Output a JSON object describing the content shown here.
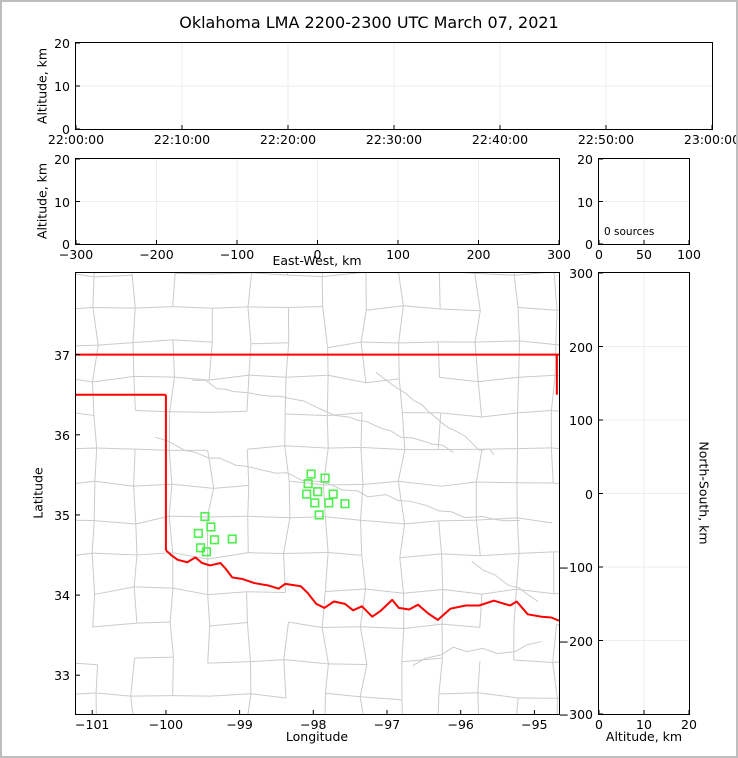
{
  "title": "Oklahoma LMA 2200-2300 UTC March 07, 2021",
  "colors": {
    "background": "#ffffff",
    "frame": "#000000",
    "gridline": "#ededed",
    "county_line": "#cbcbcb",
    "state_boundary": "#ff0000",
    "station_marker": "#4ef04e",
    "outer_border": "#bdbdbd",
    "text": "#000000"
  },
  "chart_data": {
    "type": "scatter",
    "description": "Multi-panel lightning mapping array plot with zero detected sources; green squares on map are station locations",
    "panels": {
      "time_height": {
        "type": "scatter",
        "ylabel": "Altitude, km",
        "ylim": [
          0,
          20
        ],
        "yticks": [
          0,
          10,
          20
        ],
        "ytick_labels": [
          "0",
          "10",
          "20"
        ],
        "xlim": [
          0,
          6
        ],
        "xticks": [
          0,
          1,
          2,
          3,
          4,
          5,
          6
        ],
        "xtick_labels": [
          "22:00:00",
          "22:10:00",
          "22:20:00",
          "22:30:00",
          "22:40:00",
          "22:50:00",
          "23:00:00"
        ],
        "points": []
      },
      "ew_height": {
        "type": "scatter",
        "xlabel": "East-West, km",
        "ylabel": "Altitude, km",
        "xlim": [
          -300,
          300
        ],
        "xticks": [
          -300,
          -200,
          -100,
          0,
          100,
          200,
          300
        ],
        "xtick_labels": [
          "−300",
          "−200",
          "−100",
          "0",
          "100",
          "200",
          "300"
        ],
        "ylim": [
          0,
          20
        ],
        "yticks": [
          0,
          10,
          20
        ],
        "ytick_labels": [
          "0",
          "10",
          "20"
        ],
        "points": []
      },
      "alt_histogram": {
        "type": "line",
        "annotation": "0 sources",
        "xlim": [
          0,
          100
        ],
        "xticks": [
          0,
          50,
          100
        ],
        "xtick_labels": [
          "0",
          "50",
          "100"
        ],
        "ylim": [
          0,
          20
        ],
        "yticks": [
          0,
          10,
          20
        ],
        "ytick_labels": [
          "0",
          "10",
          "20"
        ],
        "points": []
      },
      "plan_map": {
        "type": "scatter",
        "xlabel": "Longitude",
        "ylabel": "Latitude",
        "xlim": [
          -101.22,
          -94.666
        ],
        "xticks": [
          -101,
          -100,
          -99,
          -98,
          -97,
          -96,
          -95
        ],
        "xtick_labels": [
          "−101",
          "−100",
          "−99",
          "−98",
          "−97",
          "−96",
          "−95"
        ],
        "ylim": [
          32.516,
          38.019
        ],
        "yticks": [
          33,
          34,
          35,
          36,
          37
        ],
        "ytick_labels": [
          "33",
          "34",
          "35",
          "36",
          "37"
        ],
        "stations": [
          [
            -99.47,
            34.98
          ],
          [
            -99.39,
            34.85
          ],
          [
            -99.56,
            34.77
          ],
          [
            -99.34,
            34.69
          ],
          [
            -99.1,
            34.7
          ],
          [
            -99.53,
            34.59
          ],
          [
            -99.45,
            34.54
          ],
          [
            -98.03,
            35.51
          ],
          [
            -97.84,
            35.46
          ],
          [
            -98.07,
            35.39
          ],
          [
            -97.94,
            35.29
          ],
          [
            -98.09,
            35.26
          ],
          [
            -97.73,
            35.26
          ],
          [
            -97.98,
            35.15
          ],
          [
            -97.79,
            35.15
          ],
          [
            -97.57,
            35.14
          ],
          [
            -97.92,
            35.0
          ]
        ],
        "state_boundary": {
          "segments": [
            [
              [
                -101.22,
                37.0
              ],
              [
                -94.666,
                37.0
              ]
            ],
            [
              [
                -94.695,
                37.0
              ],
              [
                -94.695,
                36.5
              ]
            ],
            [
              [
                -101.22,
                36.5
              ],
              [
                -100.0,
                36.5
              ]
            ],
            [
              [
                -100.0,
                36.5
              ],
              [
                -100.0,
                34.56
              ]
            ]
          ],
          "red_river": [
            [
              -100.0,
              34.56
            ],
            [
              -99.93,
              34.5
            ],
            [
              -99.84,
              34.44
            ],
            [
              -99.71,
              34.41
            ],
            [
              -99.6,
              34.47
            ],
            [
              -99.51,
              34.4
            ],
            [
              -99.4,
              34.37
            ],
            [
              -99.26,
              34.4
            ],
            [
              -99.19,
              34.33
            ],
            [
              -99.1,
              34.22
            ],
            [
              -98.96,
              34.2
            ],
            [
              -98.8,
              34.15
            ],
            [
              -98.61,
              34.12
            ],
            [
              -98.47,
              34.08
            ],
            [
              -98.38,
              34.14
            ],
            [
              -98.17,
              34.11
            ],
            [
              -98.08,
              34.03
            ],
            [
              -97.96,
              33.89
            ],
            [
              -97.85,
              33.84
            ],
            [
              -97.72,
              33.92
            ],
            [
              -97.57,
              33.89
            ],
            [
              -97.46,
              33.81
            ],
            [
              -97.34,
              33.86
            ],
            [
              -97.2,
              33.73
            ],
            [
              -97.09,
              33.8
            ],
            [
              -96.93,
              33.94
            ],
            [
              -96.84,
              33.84
            ],
            [
              -96.7,
              33.82
            ],
            [
              -96.58,
              33.88
            ],
            [
              -96.44,
              33.77
            ],
            [
              -96.31,
              33.69
            ],
            [
              -96.14,
              33.83
            ],
            [
              -95.93,
              33.87
            ],
            [
              -95.75,
              33.87
            ],
            [
              -95.55,
              33.93
            ],
            [
              -95.33,
              33.87
            ],
            [
              -95.24,
              33.92
            ],
            [
              -95.09,
              33.76
            ],
            [
              -94.9,
              33.73
            ],
            [
              -94.77,
              33.72
            ],
            [
              -94.666,
              33.68
            ]
          ]
        },
        "rivers": [
          [
            [
              -99.65,
              36.68
            ],
            [
              -99.2,
              36.57
            ],
            [
              -98.75,
              36.5
            ],
            [
              -98.3,
              36.45
            ],
            [
              -97.85,
              36.3
            ],
            [
              -97.4,
              36.18
            ],
            [
              -96.95,
              36.05
            ],
            [
              -96.5,
              35.92
            ],
            [
              -96.1,
              35.78
            ]
          ],
          [
            [
              -100.15,
              35.97
            ],
            [
              -99.6,
              35.78
            ],
            [
              -99.05,
              35.62
            ],
            [
              -98.5,
              35.52
            ],
            [
              -97.95,
              35.42
            ],
            [
              -97.4,
              35.3
            ],
            [
              -96.85,
              35.18
            ],
            [
              -96.3,
              35.05
            ],
            [
              -95.7,
              34.98
            ],
            [
              -95.2,
              34.93
            ]
          ],
          [
            [
              -97.15,
              36.78
            ],
            [
              -96.75,
              36.52
            ],
            [
              -96.45,
              36.3
            ],
            [
              -96.15,
              36.08
            ],
            [
              -95.85,
              35.9
            ],
            [
              -95.55,
              35.75
            ]
          ],
          [
            [
              -96.65,
              33.12
            ],
            [
              -96.1,
              33.35
            ],
            [
              -95.5,
              33.27
            ],
            [
              -94.9,
              33.42
            ]
          ],
          [
            [
              -95.85,
              34.42
            ],
            [
              -95.35,
              34.12
            ],
            [
              -94.95,
              33.92
            ]
          ]
        ],
        "county_grid": {
          "lon_step": 0.52,
          "lat_step": 0.44,
          "jitter": 0.05,
          "keep_prob": 0.85,
          "seed": 7
        }
      },
      "ns_height": {
        "type": "scatter",
        "xlabel": "Altitude, km",
        "ylabel": "North-South, km",
        "xlim": [
          0,
          20
        ],
        "xticks": [
          0,
          10,
          20
        ],
        "xtick_labels": [
          "0",
          "10",
          "20"
        ],
        "ylim": [
          -300,
          300
        ],
        "yticks": [
          -300,
          -200,
          -100,
          0,
          100,
          200,
          300
        ],
        "ytick_labels": [
          "−300",
          "−200",
          "−100",
          "0",
          "100",
          "200",
          "300"
        ],
        "points": []
      }
    }
  }
}
